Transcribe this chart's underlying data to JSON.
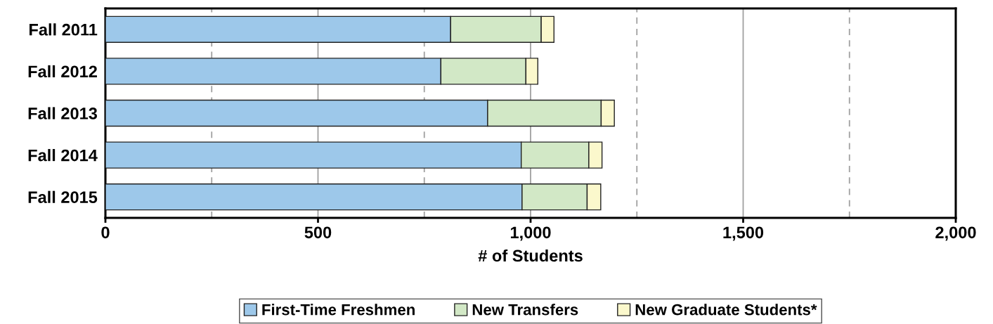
{
  "chart_data": {
    "type": "bar",
    "orientation": "horizontal",
    "stacked": true,
    "xlabel": "# of Students",
    "categories": [
      "Fall 2011",
      "Fall 2012",
      "Fall 2013",
      "Fall 2014",
      "Fall 2015"
    ],
    "series": [
      {
        "name": "First-Time Freshmen",
        "color": "#9dc8ea",
        "values": [
          812,
          789,
          899,
          978,
          980
        ]
      },
      {
        "name": "New Transfers",
        "color": "#d2e8c6",
        "values": [
          213,
          200,
          267,
          159,
          153
        ]
      },
      {
        "name": "New Graduate Students*",
        "color": "#fbf8cc",
        "values": [
          30,
          28,
          31,
          31,
          32
        ]
      }
    ],
    "xlim": [
      0,
      2000
    ],
    "xticks": [
      0,
      500,
      {
        "value": 1000,
        "label": "1,000"
      },
      {
        "value": 1500,
        "label": "1,500"
      },
      {
        "value": 2000,
        "label": "2,000"
      }
    ],
    "grid": "x",
    "ref_lines": [
      {
        "axis": "x",
        "value": 250,
        "label": null,
        "color": "#a0a0a0",
        "line_style": "dashed"
      },
      {
        "axis": "x",
        "value": 750,
        "label": null,
        "color": "#a0a0a0",
        "line_style": "dashed"
      },
      {
        "axis": "x",
        "value": 1250,
        "label": null,
        "color": "#a0a0a0",
        "line_style": "dashed"
      },
      {
        "axis": "x",
        "value": 1750,
        "label": null,
        "color": "#a0a0a0",
        "line_style": "dashed"
      }
    ],
    "legend": "bottom"
  }
}
